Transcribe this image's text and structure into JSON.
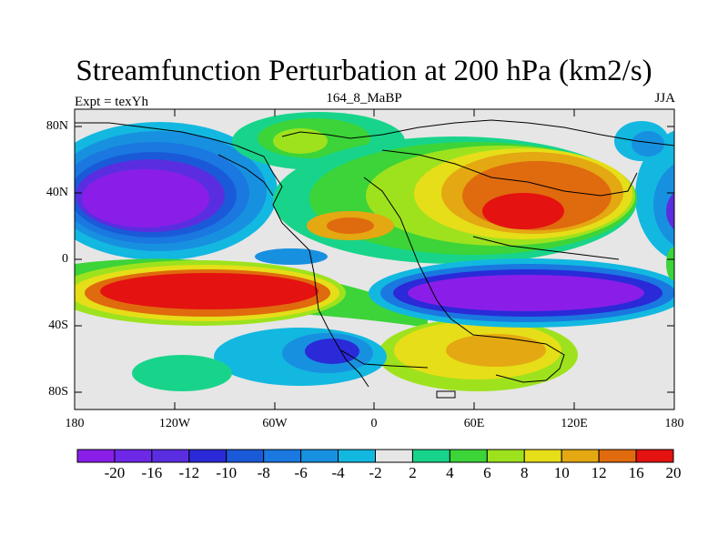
{
  "title": "Streamfunction Perturbation at 200 hPa (km2/s)",
  "subtitle_left": "Expt = texYh",
  "subtitle_center": "164_8_MaBP",
  "subtitle_right": "JJA",
  "chart_data": {
    "type": "heatmap",
    "xlim": [
      -180,
      180
    ],
    "ylim": [
      -90,
      90
    ],
    "x_ticks": [
      "180",
      "120W",
      "60W",
      "0",
      "60E",
      "120E",
      "180"
    ],
    "y_ticks": [
      "80N",
      "40N",
      "0",
      "40S",
      "80S"
    ],
    "colorbar": {
      "labels": [
        "-20",
        "-16",
        "-12",
        "-10",
        "-8",
        "-6",
        "-4",
        "-2",
        "2",
        "4",
        "6",
        "8",
        "10",
        "12",
        "16",
        "20"
      ],
      "colors": [
        "#8a1ee8",
        "#6e28e8",
        "#5a2ee0",
        "#2a2ad8",
        "#1a5ad8",
        "#1a78e0",
        "#1890e0",
        "#12b8e0",
        "#e6e6e6",
        "#18d48a",
        "#3cd438",
        "#9ee21e",
        "#e6de18",
        "#e4a812",
        "#e06a0e",
        "#e41210"
      ]
    }
  }
}
